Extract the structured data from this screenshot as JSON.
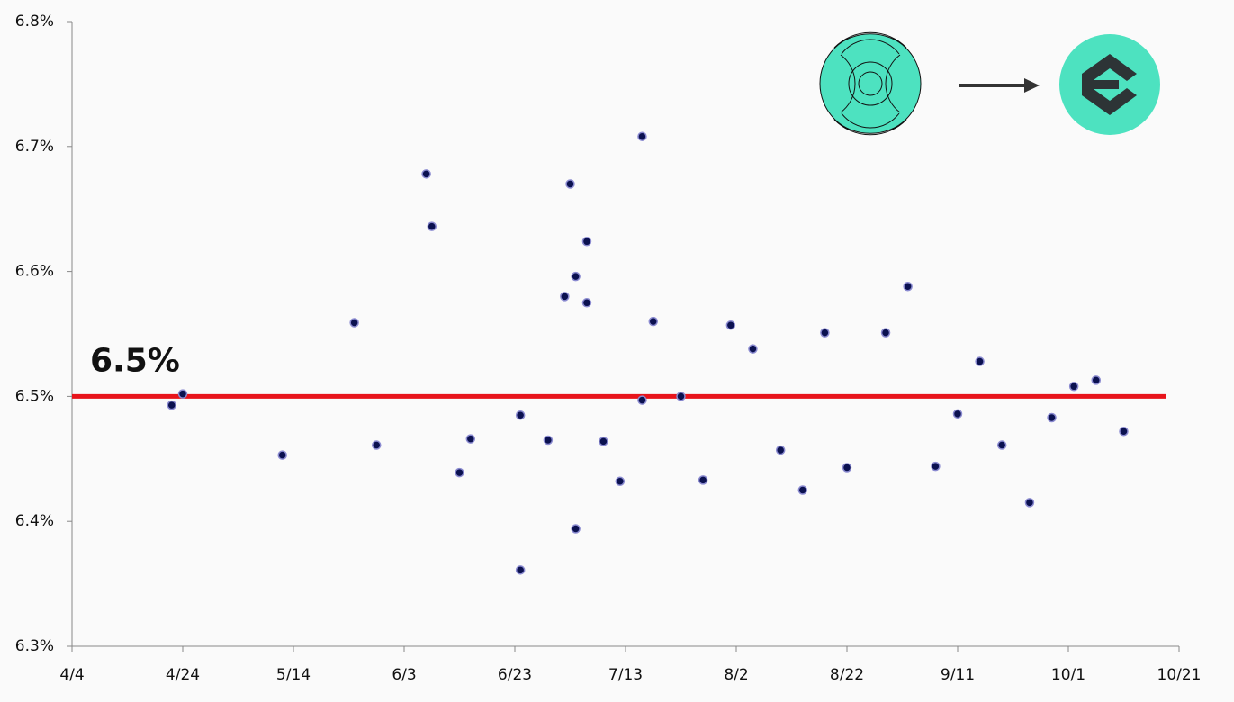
{
  "chart_data": {
    "type": "scatter",
    "x": [
      "4/22",
      "4/24",
      "5/12",
      "5/25",
      "5/29",
      "6/7",
      "6/8",
      "6/13",
      "6/15",
      "6/24",
      "6/24",
      "6/29",
      "7/2",
      "7/3",
      "7/4",
      "7/4",
      "7/6",
      "7/6",
      "7/9",
      "7/12",
      "7/16",
      "7/16",
      "7/18",
      "7/23",
      "7/27",
      "8/1",
      "8/5",
      "8/10",
      "8/14",
      "8/18",
      "8/22",
      "8/29",
      "9/2",
      "9/7",
      "9/11",
      "9/15",
      "9/19",
      "9/24",
      "9/28",
      "10/2",
      "10/6",
      "10/11"
    ],
    "values": [
      6.493,
      6.502,
      6.453,
      6.559,
      6.461,
      6.678,
      6.636,
      6.439,
      6.466,
      6.485,
      6.361,
      6.465,
      6.58,
      6.67,
      6.596,
      6.394,
      6.575,
      6.624,
      6.464,
      6.432,
      6.708,
      6.497,
      6.56,
      6.5,
      6.433,
      6.557,
      6.538,
      6.457,
      6.425,
      6.551,
      6.443,
      6.551,
      6.588,
      6.444,
      6.486,
      6.528,
      6.461,
      6.415,
      6.483,
      6.508,
      6.513,
      6.472
    ],
    "color": "#0b1150",
    "xlim": [
      "4/4",
      "10/21"
    ],
    "xticks": [
      "4/4",
      "4/24",
      "5/14",
      "6/3",
      "6/23",
      "7/13",
      "8/2",
      "8/22",
      "9/11",
      "10/1",
      "10/21"
    ],
    "ylim": [
      6.3,
      6.8
    ],
    "yticks": [
      {
        "value": 6.3,
        "label": "6.3%"
      },
      {
        "value": 6.4,
        "label": "6.4%"
      },
      {
        "value": 6.5,
        "label": "6.5%"
      },
      {
        "value": 6.6,
        "label": "6.6%"
      },
      {
        "value": 6.7,
        "label": "6.7%"
      },
      {
        "value": 6.8,
        "label": "6.8%"
      }
    ],
    "reference_line": {
      "value": 6.5,
      "label": "6.5%",
      "color": "#e8141b"
    }
  }
}
